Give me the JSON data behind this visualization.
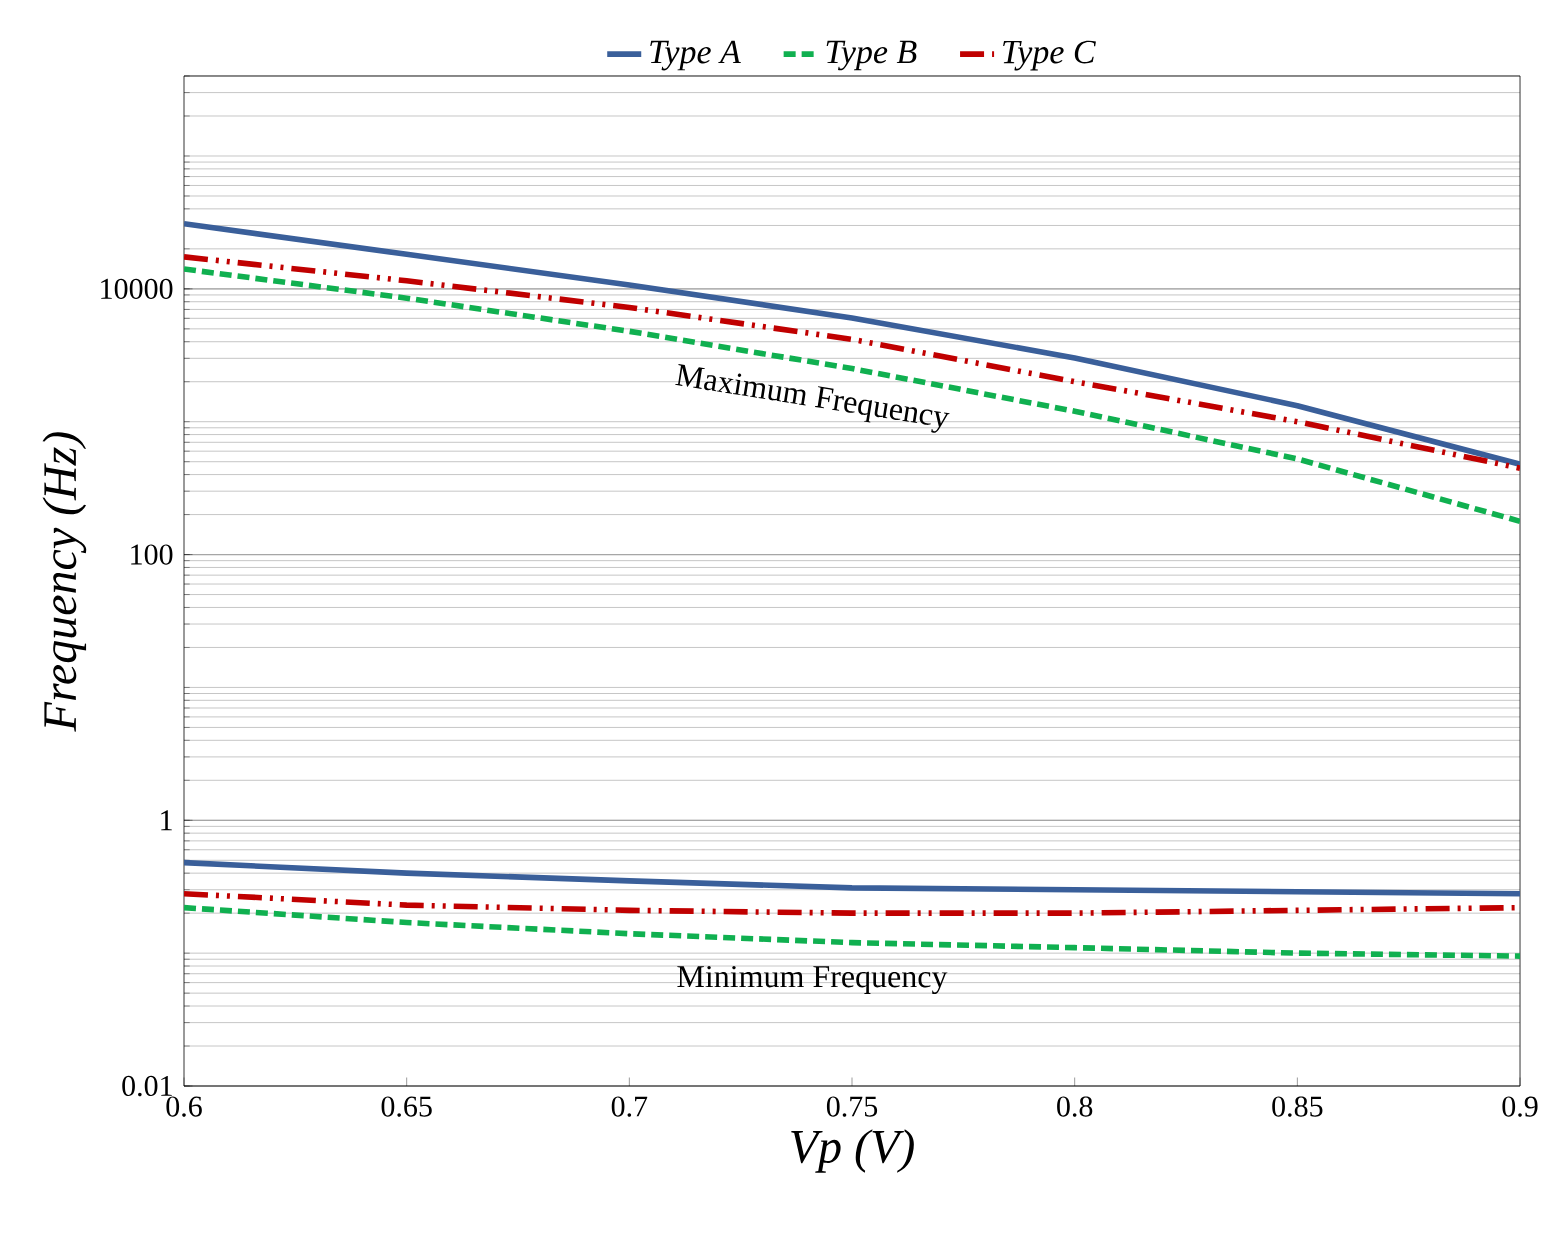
{
  "chart_data": {
    "type": "line",
    "xlabel": "Vp (V)",
    "ylabel": "Frequency (Hz)",
    "x": [
      0.6,
      0.65,
      0.7,
      0.75,
      0.8,
      0.85,
      0.9
    ],
    "series": [
      {
        "name": "Type A",
        "color": "#3a5f9a",
        "line_style": "solid",
        "values": [
          30900,
          18200,
          10700,
          6030,
          3020,
          1320,
          479
        ]
      },
      {
        "name": "Type B",
        "color": "#10b050",
        "line_style": "dashed",
        "values": [
          14100,
          8510,
          4790,
          2510,
          1200,
          525,
          178
        ]
      },
      {
        "name": "Type C",
        "color": "#c00000",
        "line_style": "dashdotdotted",
        "values": [
          17400,
          11500,
          7240,
          4170,
          2000,
          1000,
          447
        ]
      },
      {
        "color": "#3a5f9a",
        "line_style": "solid",
        "values": [
          0.48,
          0.4,
          0.35,
          0.31,
          0.3,
          0.29,
          0.28
        ]
      },
      {
        "color": "#10b050",
        "line_style": "dashed",
        "values": [
          0.22,
          0.17,
          0.14,
          0.12,
          0.11,
          0.1,
          0.095
        ]
      },
      {
        "color": "#c00000",
        "line_style": "dashdotdotted",
        "values": [
          0.28,
          0.23,
          0.21,
          0.2,
          0.2,
          0.21,
          0.22
        ]
      }
    ],
    "xlim": [
      0.6,
      0.9
    ],
    "xticks": [
      0.6,
      0.65,
      0.7,
      0.75,
      0.8,
      0.85,
      0.9
    ],
    "ylim": [
      0.01,
      400000
    ],
    "yticks": [
      0.01,
      1,
      100,
      10000
    ],
    "log": "y",
    "grid": "y",
    "legend": "top",
    "marker": "none",
    "annotations": [
      "Maximum Frequency",
      "Minimum Frequency"
    ]
  }
}
